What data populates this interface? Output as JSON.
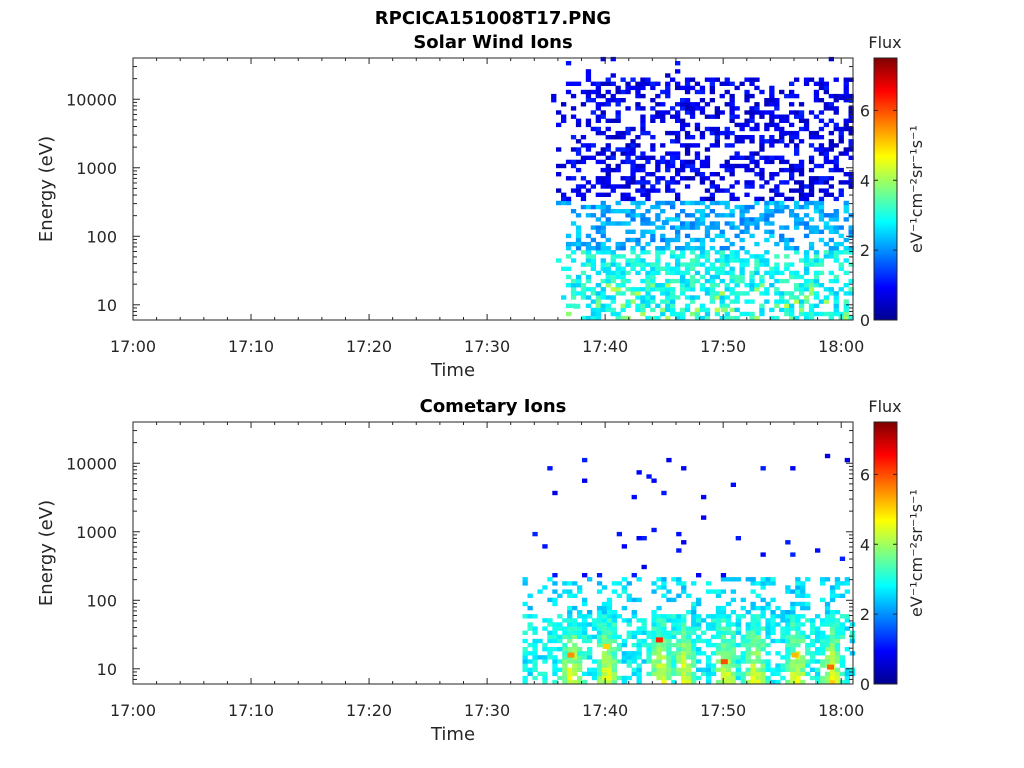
{
  "figure": {
    "title": "RPCICA151008T17.PNG"
  },
  "chart_data": [
    {
      "type": "heatmap",
      "title": "Solar Wind Ions",
      "xlabel": "Time",
      "ylabel": "Energy (eV)",
      "x_ticks": [
        "17:00",
        "17:10",
        "17:20",
        "17:30",
        "17:40",
        "17:50",
        "18:00"
      ],
      "x_range_minutes": [
        0,
        61
      ],
      "y_scale": "log",
      "y_ticks": [
        "10",
        "100",
        "1000",
        "10000"
      ],
      "y_range": [
        6,
        40000
      ],
      "colorbar": {
        "title": "Flux",
        "unit": "eV⁻¹cm⁻²sr⁻¹s⁻¹",
        "ticks": [
          "0",
          "2",
          "4",
          "6"
        ],
        "range": [
          0,
          7.5
        ],
        "colormap": "jet"
      },
      "data_summary": {
        "onset_minute": 35,
        "columns_from_minute": 35,
        "columns_to_minute": 61,
        "high_energy_band": {
          "from": 300,
          "to": 40000,
          "flux": [
            0.4,
            1.2
          ]
        },
        "mid_energy_band": {
          "from": 60,
          "to": 300,
          "flux": [
            1.8,
            2.6
          ]
        },
        "low_energy_band": {
          "from": 6,
          "to": 60,
          "flux": [
            2.4,
            3.4
          ]
        }
      },
      "sample_bins": [
        {
          "t": 37.5,
          "e": 9,
          "flux": 3.2
        },
        {
          "t": 40,
          "e": 30,
          "flux": 2.6
        },
        {
          "t": 45,
          "e": 150,
          "flux": 2.1
        },
        {
          "t": 50,
          "e": 8,
          "flux": 3.8
        },
        {
          "t": 55,
          "e": 3000,
          "flux": 0.8
        },
        {
          "t": 60,
          "e": 10000,
          "flux": 0.6
        }
      ]
    },
    {
      "type": "heatmap",
      "title": "Cometary Ions",
      "xlabel": "Time",
      "ylabel": "Energy (eV)",
      "x_ticks": [
        "17:00",
        "17:10",
        "17:20",
        "17:30",
        "17:40",
        "17:50",
        "18:00"
      ],
      "x_range_minutes": [
        0,
        61
      ],
      "y_scale": "log",
      "y_ticks": [
        "10",
        "100",
        "1000",
        "10000"
      ],
      "y_range": [
        6,
        40000
      ],
      "colorbar": {
        "title": "Flux",
        "unit": "eV⁻¹cm⁻²sr⁻¹s⁻¹",
        "ticks": [
          "0",
          "2",
          "4",
          "6"
        ],
        "range": [
          0,
          7.5
        ],
        "colormap": "jet"
      },
      "data_summary": {
        "onset_minute": 33,
        "columns_from_minute": 33,
        "columns_to_minute": 61,
        "background_band": {
          "from": 6,
          "to": 200,
          "flux": [
            2.2,
            3.2
          ]
        },
        "sparse_high_points": {
          "from": 300,
          "to": 13000,
          "flux": [
            0.7,
            1.2
          ]
        },
        "bursts_minutes": [
          37,
          40,
          44.5,
          46.5,
          50,
          52.5,
          56,
          59
        ]
      },
      "sample_bins": [
        {
          "t": 37,
          "e": 15,
          "flux": 5.5
        },
        {
          "t": 40,
          "e": 20,
          "flux": 5.0
        },
        {
          "t": 44.5,
          "e": 25,
          "flux": 6.3
        },
        {
          "t": 50,
          "e": 12,
          "flux": 6.0
        },
        {
          "t": 56,
          "e": 15,
          "flux": 5.2
        },
        {
          "t": 59,
          "e": 10,
          "flux": 5.8
        }
      ]
    }
  ]
}
